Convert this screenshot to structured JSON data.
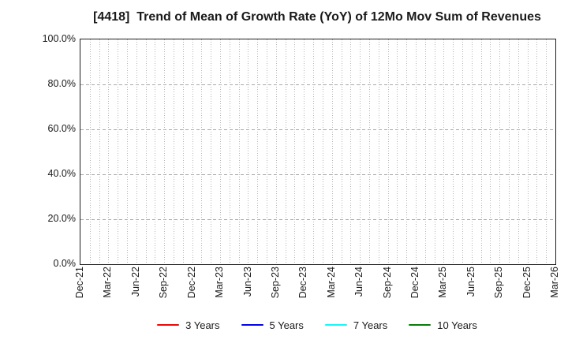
{
  "chart_data": {
    "type": "line",
    "title": "[4418]  Trend of Mean of Growth Rate (YoY) of 12Mo Mov Sum of Revenues",
    "x_tick_labels": [
      "Dec-21",
      "Mar-22",
      "Jun-22",
      "Sep-22",
      "Dec-22",
      "Mar-23",
      "Jun-23",
      "Sep-23",
      "Dec-23",
      "Mar-24",
      "Jun-24",
      "Sep-24",
      "Dec-24",
      "Mar-25",
      "Jun-25",
      "Sep-25",
      "Dec-25",
      "Mar-26"
    ],
    "months_per_labeled_tick": 3,
    "minor_vertical_grid_every_months": 1,
    "y_tick_labels": [
      "0.0%",
      "20.0%",
      "40.0%",
      "60.0%",
      "80.0%",
      "100.0%"
    ],
    "y_tick_values": [
      0,
      20,
      40,
      60,
      80,
      100
    ],
    "ylim": [
      0,
      100
    ],
    "grid": true,
    "legend_position": "bottom-center",
    "series": [
      {
        "name": "3 Years",
        "color": "#ff0000",
        "values": []
      },
      {
        "name": "5 Years",
        "color": "#0000ff",
        "values": []
      },
      {
        "name": "7 Years",
        "color": "#00ffff",
        "values": []
      },
      {
        "name": "10 Years",
        "color": "#008000",
        "values": []
      }
    ]
  },
  "style": {
    "grid_vertical_color": "#b5b5b5",
    "grid_horizontal_color": "#a8a8a8",
    "axis_border_color": "#1f1f1f",
    "text_color": "#1a1a1a",
    "background": "#ffffff"
  }
}
